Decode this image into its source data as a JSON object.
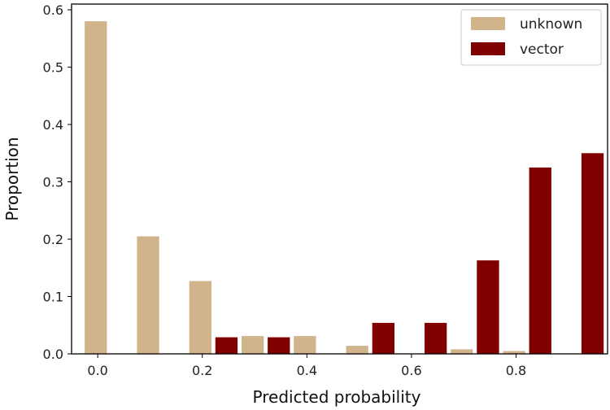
{
  "chart_data": {
    "type": "bar",
    "title": "",
    "xlabel": "Predicted probability",
    "ylabel": "Proportion",
    "xlim": [
      -0.05,
      0.975
    ],
    "ylim": [
      0,
      0.61
    ],
    "bin_width": 0.1,
    "xticks": [
      "0.0",
      "0.2",
      "0.4",
      "0.6",
      "0.8"
    ],
    "yticks": [
      "0.0",
      "0.1",
      "0.2",
      "0.3",
      "0.4",
      "0.5",
      "0.6"
    ],
    "bins": [
      0.0,
      0.1,
      0.2,
      0.3,
      0.4,
      0.5,
      0.6,
      0.7,
      0.8,
      0.9
    ],
    "series": [
      {
        "name": "unknown",
        "color": "#d2b48c",
        "values": [
          0.58,
          0.205,
          0.127,
          0.031,
          0.031,
          0.014,
          0.0,
          0.008,
          0.005,
          0.0
        ]
      },
      {
        "name": "vector",
        "color": "#800000",
        "values": [
          0.0,
          0.0,
          0.029,
          0.029,
          0.0,
          0.054,
          0.054,
          0.163,
          0.325,
          0.35
        ]
      }
    ],
    "legend": "top-right",
    "grid": false
  }
}
